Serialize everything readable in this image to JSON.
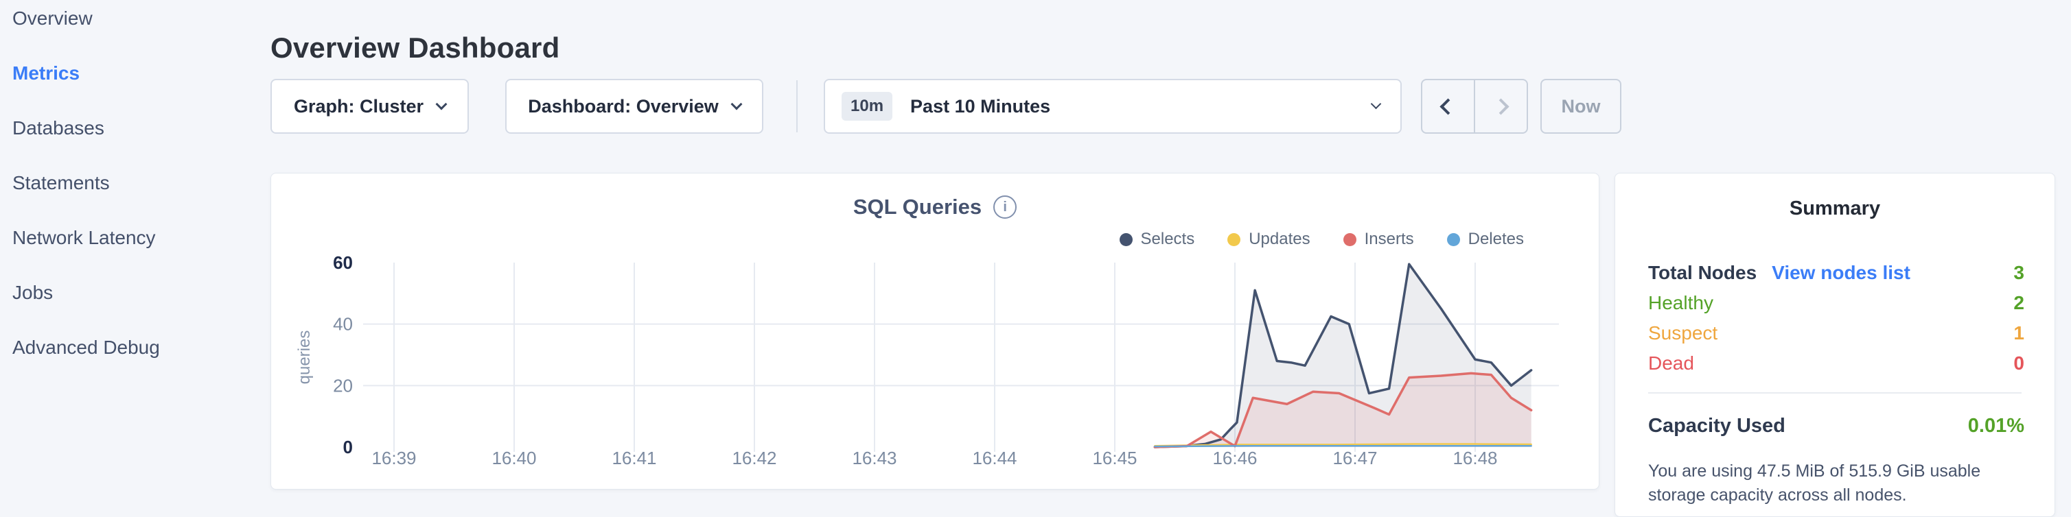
{
  "sidebar": {
    "items": [
      {
        "label": "Overview",
        "active": false
      },
      {
        "label": "Metrics",
        "active": true
      },
      {
        "label": "Databases",
        "active": false
      },
      {
        "label": "Statements",
        "active": false
      },
      {
        "label": "Network Latency",
        "active": false
      },
      {
        "label": "Jobs",
        "active": false
      },
      {
        "label": "Advanced Debug",
        "active": false
      }
    ]
  },
  "header": {
    "page_title": "Overview Dashboard"
  },
  "toolbar": {
    "graph_selector": "Graph: Cluster",
    "dashboard_selector": "Dashboard: Overview",
    "time_range": {
      "badge": "10m",
      "label": "Past 10 Minutes"
    },
    "now_label": "Now",
    "icons": {
      "graph_dropdown": "chevron-down",
      "dashboard_dropdown": "chevron-down",
      "time_dropdown": "chevron-down",
      "prev": "chevron-left",
      "next": "chevron-right"
    }
  },
  "chart": {
    "title": "SQL Queries",
    "info_icon": "i"
  },
  "chart_data": {
    "type": "area",
    "title": "SQL Queries",
    "ylabel": "queries",
    "xlabel": "",
    "ylim": [
      0,
      60
    ],
    "yticks": [
      0,
      20,
      40,
      60
    ],
    "grid_y": [
      20,
      40
    ],
    "x_unit": "seconds after 16:39:00",
    "x_ticks": [
      {
        "label": "16:39",
        "t": 0
      },
      {
        "label": "16:40",
        "t": 60
      },
      {
        "label": "16:41",
        "t": 120
      },
      {
        "label": "16:42",
        "t": 180
      },
      {
        "label": "16:43",
        "t": 240
      },
      {
        "label": "16:44",
        "t": 300
      },
      {
        "label": "16:45",
        "t": 360
      },
      {
        "label": "16:46",
        "t": 420
      },
      {
        "label": "16:47",
        "t": 480
      },
      {
        "label": "16:48",
        "t": 540
      }
    ],
    "series": [
      {
        "name": "Selects",
        "color": "#44536F",
        "fill": "rgba(68,83,111,0.10)",
        "width": 3.5,
        "points": [
          [
            380,
            0
          ],
          [
            395,
            0.3
          ],
          [
            405,
            1
          ],
          [
            413,
            2.5
          ],
          [
            418,
            6
          ],
          [
            421,
            8
          ],
          [
            430,
            51
          ],
          [
            441,
            28
          ],
          [
            448,
            27.5
          ],
          [
            455,
            26.5
          ],
          [
            468,
            42.5
          ],
          [
            477,
            40
          ],
          [
            487,
            17.5
          ],
          [
            497,
            19
          ],
          [
            507,
            59.5
          ],
          [
            523,
            45
          ],
          [
            540,
            28.5
          ],
          [
            548,
            27.5
          ],
          [
            558,
            20
          ],
          [
            568,
            25
          ]
        ]
      },
      {
        "name": "Updates",
        "color": "#F2C94C",
        "fill": null,
        "width": 2.5,
        "points": [
          [
            380,
            0.4
          ],
          [
            420,
            0.8
          ],
          [
            470,
            0.8
          ],
          [
            510,
            1
          ],
          [
            540,
            1
          ],
          [
            568,
            0.9
          ]
        ]
      },
      {
        "name": "Inserts",
        "color": "#DF6D6A",
        "fill": "rgba(223,109,106,0.13)",
        "width": 3.5,
        "points": [
          [
            380,
            0
          ],
          [
            396,
            0.3
          ],
          [
            408,
            5
          ],
          [
            420,
            0.3
          ],
          [
            429,
            16
          ],
          [
            446,
            14
          ],
          [
            459,
            18
          ],
          [
            472,
            17.5
          ],
          [
            490,
            12.6
          ],
          [
            497,
            10.6
          ],
          [
            507,
            22.6
          ],
          [
            523,
            23.2
          ],
          [
            538,
            24
          ],
          [
            548,
            23.5
          ],
          [
            558,
            16
          ],
          [
            568,
            12
          ]
        ]
      },
      {
        "name": "Deletes",
        "color": "#62A6D9",
        "fill": null,
        "width": 2.5,
        "points": [
          [
            380,
            0.2
          ],
          [
            430,
            0.4
          ],
          [
            480,
            0.4
          ],
          [
            530,
            0.4
          ],
          [
            568,
            0.4
          ]
        ]
      }
    ],
    "legend_position": "top-right",
    "axis_colors": {
      "tick": "#7C8BA1",
      "tick_bold": "#1F2B4A",
      "grid": "#E6EAF1"
    }
  },
  "summary": {
    "title": "Summary",
    "link_color": "#3B7DF7",
    "rows": [
      {
        "label": "Total Nodes",
        "link": "View nodes list",
        "value": "3",
        "label_color": "#2F3A4F",
        "value_color": "#54A228"
      },
      {
        "label": "Healthy",
        "value": "2",
        "label_color": "#54A228",
        "value_color": "#54A228"
      },
      {
        "label": "Suspect",
        "value": "1",
        "label_color": "#EFA63E",
        "value_color": "#EFA63E"
      },
      {
        "label": "Dead",
        "value": "0",
        "label_color": "#E5555A",
        "value_color": "#E5555A"
      }
    ],
    "capacity": {
      "label": "Capacity Used",
      "value": "0.01%",
      "value_color": "#54A228",
      "description": "You are using 47.5 MiB of 515.9 GiB usable storage capacity across all nodes."
    }
  },
  "colors": {
    "accent": "#3B7DF7",
    "page_bg": "#F4F6FA",
    "card_border": "#E3E8EF",
    "green": "#54A228",
    "orange": "#EFA63E",
    "red": "#E5555A"
  }
}
